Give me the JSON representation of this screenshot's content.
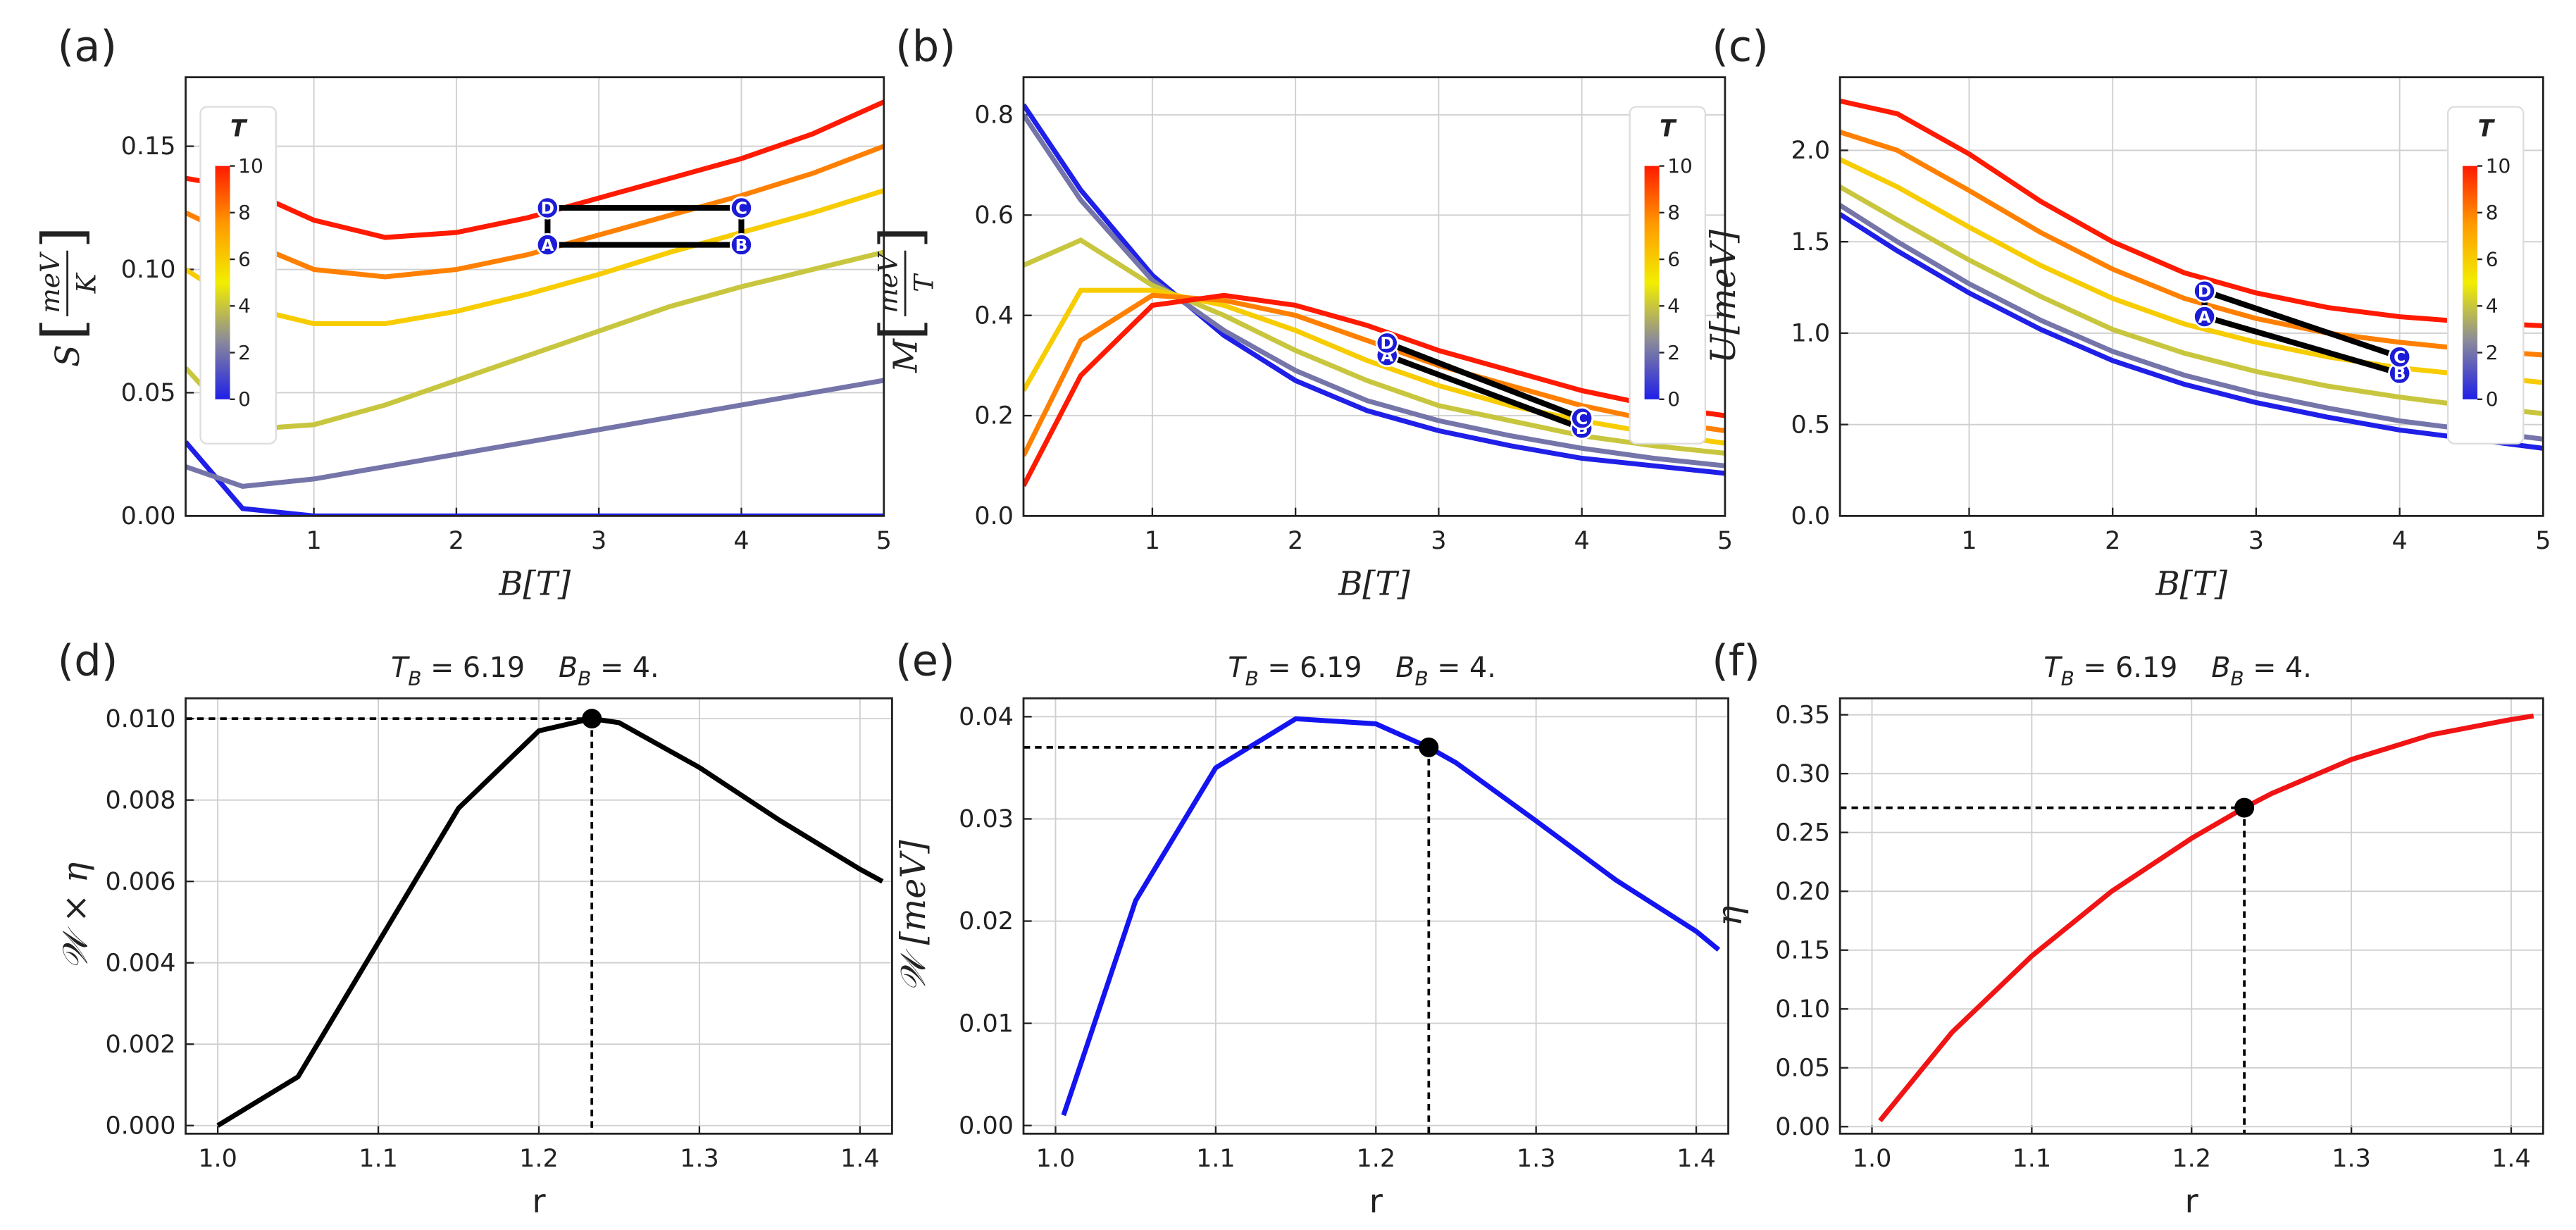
{
  "chart_data": [
    {
      "type": "line",
      "label": "(a)",
      "xlabel": "B[T]",
      "ylabel": {
        "symbol": "S",
        "open": "[",
        "num": "meV",
        "den": "K",
        "close": "]"
      },
      "x": [
        0.1,
        0.5,
        1,
        1.5,
        2,
        2.5,
        3,
        3.5,
        4,
        4.5,
        5
      ],
      "xlim": [
        0.1,
        5
      ],
      "ylim": [
        0,
        0.178
      ],
      "xticks": [
        1,
        2,
        3,
        4,
        5
      ],
      "yticks": [
        {
          "value": 0,
          "label": "0.00"
        },
        {
          "value": 0.05,
          "label": "0.05"
        },
        {
          "value": 0.1,
          "label": "0.10"
        },
        {
          "value": 0.15,
          "label": "0.15"
        }
      ],
      "grid": true,
      "colorbar": {
        "title": "T",
        "lim": [
          0,
          10
        ],
        "ticks": [
          0,
          2,
          4,
          6,
          8,
          10
        ],
        "colormap": [
          "#1f1fe8",
          "#8a8a9a",
          "#f2ee00",
          "#ff9a00",
          "#ff1a00"
        ],
        "loc": "upper left"
      },
      "series": [
        {
          "t": 0,
          "values": [
            0.03,
            0.003,
            0,
            0,
            0,
            0,
            0,
            0,
            0,
            0,
            0
          ]
        },
        {
          "t": 2,
          "values": [
            0.02,
            0.012,
            0.015,
            0.02,
            0.025,
            0.03,
            0.035,
            0.04,
            0.045,
            0.05,
            0.055
          ]
        },
        {
          "t": 4,
          "values": [
            0.06,
            0.035,
            0.037,
            0.045,
            0.055,
            0.065,
            0.075,
            0.085,
            0.093,
            0.1,
            0.107
          ]
        },
        {
          "t": 6,
          "values": [
            0.1,
            0.085,
            0.078,
            0.078,
            0.083,
            0.09,
            0.098,
            0.107,
            0.115,
            0.123,
            0.132
          ]
        },
        {
          "t": 8,
          "values": [
            0.123,
            0.112,
            0.1,
            0.097,
            0.1,
            0.106,
            0.114,
            0.122,
            0.13,
            0.139,
            0.15
          ]
        },
        {
          "t": 10,
          "values": [
            0.137,
            0.133,
            0.12,
            0.113,
            0.115,
            0.121,
            0.129,
            0.137,
            0.145,
            0.155,
            0.168
          ]
        }
      ],
      "cycle": {
        "labels": [
          "A",
          "B",
          "C",
          "D"
        ],
        "x": [
          2.64,
          4,
          4,
          2.64
        ],
        "y": [
          0.11,
          0.11,
          0.125,
          0.125
        ],
        "color": "#1c1cd6"
      }
    },
    {
      "type": "line",
      "label": "(b)",
      "xlabel": "B[T]",
      "ylabel": {
        "symbol": "M",
        "open": "[",
        "num": "meV",
        "den": "T",
        "close": "]"
      },
      "x": [
        0.1,
        0.5,
        1,
        1.5,
        2,
        2.5,
        3,
        3.5,
        4,
        4.5,
        5
      ],
      "xlim": [
        0.1,
        5
      ],
      "ylim": [
        0,
        0.875
      ],
      "xticks": [
        1,
        2,
        3,
        4,
        5
      ],
      "yticks": [
        {
          "value": 0,
          "label": "0.0"
        },
        0.2,
        0.4,
        0.6,
        0.8
      ],
      "grid": true,
      "colorbar": {
        "title": "T",
        "lim": [
          0,
          10
        ],
        "ticks": [
          0,
          2,
          4,
          6,
          8,
          10
        ],
        "colormap": [
          "#1f1fe8",
          "#8a8a9a",
          "#f2ee00",
          "#ff9a00",
          "#ff1a00"
        ],
        "loc": "upper right"
      },
      "series": [
        {
          "t": 0,
          "values": [
            0.82,
            0.65,
            0.48,
            0.36,
            0.27,
            0.21,
            0.17,
            0.14,
            0.115,
            0.1,
            0.085
          ]
        },
        {
          "t": 2,
          "values": [
            0.8,
            0.63,
            0.47,
            0.37,
            0.29,
            0.23,
            0.19,
            0.16,
            0.135,
            0.115,
            0.1
          ]
        },
        {
          "t": 4,
          "values": [
            0.5,
            0.55,
            0.46,
            0.4,
            0.33,
            0.27,
            0.22,
            0.19,
            0.16,
            0.14,
            0.125
          ]
        },
        {
          "t": 6,
          "values": [
            0.25,
            0.45,
            0.45,
            0.42,
            0.37,
            0.31,
            0.26,
            0.22,
            0.19,
            0.165,
            0.145
          ]
        },
        {
          "t": 8,
          "values": [
            0.12,
            0.35,
            0.44,
            0.43,
            0.4,
            0.35,
            0.3,
            0.26,
            0.22,
            0.19,
            0.17
          ]
        },
        {
          "t": 10,
          "values": [
            0.06,
            0.28,
            0.42,
            0.44,
            0.42,
            0.38,
            0.33,
            0.29,
            0.25,
            0.22,
            0.2
          ]
        }
      ],
      "cycle": {
        "labels": [
          "A",
          "B",
          "C",
          "D"
        ],
        "x": [
          2.64,
          4,
          4,
          2.64
        ],
        "y": [
          0.32,
          0.175,
          0.195,
          0.345
        ],
        "color": "#1c1cd6"
      }
    },
    {
      "type": "line",
      "label": "(c)",
      "xlabel": "B[T]",
      "ylabel": "U[meV]",
      "x": [
        0.1,
        0.5,
        1,
        1.5,
        2,
        2.5,
        3,
        3.5,
        4,
        4.5,
        5
      ],
      "xlim": [
        0.1,
        5
      ],
      "ylim": [
        0,
        2.4
      ],
      "xticks": [
        1,
        2,
        3,
        4,
        5
      ],
      "yticks": [
        {
          "value": 0,
          "label": "0.0"
        },
        0.5,
        {
          "value": 1,
          "label": "1.0"
        },
        1.5,
        {
          "value": 2,
          "label": "2.0"
        }
      ],
      "grid": true,
      "colorbar": {
        "title": "T",
        "lim": [
          0,
          10
        ],
        "ticks": [
          0,
          2,
          4,
          6,
          8,
          10
        ],
        "colormap": [
          "#1f1fe8",
          "#8a8a9a",
          "#f2ee00",
          "#ff9a00",
          "#ff1a00"
        ],
        "loc": "upper right"
      },
      "series": [
        {
          "t": 0,
          "values": [
            1.65,
            1.45,
            1.22,
            1.02,
            0.85,
            0.72,
            0.62,
            0.54,
            0.47,
            0.42,
            0.37
          ]
        },
        {
          "t": 2,
          "values": [
            1.7,
            1.5,
            1.27,
            1.07,
            0.9,
            0.77,
            0.67,
            0.59,
            0.52,
            0.47,
            0.42
          ]
        },
        {
          "t": 4,
          "values": [
            1.8,
            1.62,
            1.4,
            1.2,
            1.02,
            0.89,
            0.79,
            0.71,
            0.65,
            0.6,
            0.56
          ]
        },
        {
          "t": 6,
          "values": [
            1.95,
            1.8,
            1.58,
            1.37,
            1.19,
            1.05,
            0.95,
            0.87,
            0.81,
            0.77,
            0.73
          ]
        },
        {
          "t": 8,
          "values": [
            2.1,
            2.0,
            1.78,
            1.55,
            1.35,
            1.19,
            1.08,
            1.0,
            0.95,
            0.91,
            0.88
          ]
        },
        {
          "t": 10,
          "values": [
            2.27,
            2.2,
            1.98,
            1.72,
            1.5,
            1.33,
            1.22,
            1.14,
            1.09,
            1.06,
            1.04
          ]
        }
      ],
      "cycle": {
        "labels": [
          "A",
          "B",
          "C",
          "D"
        ],
        "x": [
          2.64,
          4,
          4,
          2.64
        ],
        "y": [
          1.09,
          0.78,
          0.87,
          1.23
        ],
        "color": "#1c1cd6"
      }
    },
    {
      "type": "line",
      "label": "(d)",
      "xlabel": "r",
      "ylabel": "𝒲 × η",
      "params": [
        {
          "var": "T",
          "sub": "B",
          "rest": " = 6.19"
        },
        {
          "var": "B",
          "sub": "B",
          "rest": " = 4."
        }
      ],
      "x": [
        1.0,
        1.05,
        1.1,
        1.15,
        1.2,
        1.233,
        1.25,
        1.3,
        1.35,
        1.4,
        1.414
      ],
      "values": [
        0,
        0.0012,
        0.0045,
        0.0078,
        0.0097,
        0.01,
        0.0099,
        0.0088,
        0.0075,
        0.0063,
        0.006
      ],
      "color": "#000000",
      "point": {
        "x": 1.233,
        "y": 0.01
      },
      "xlim": [
        0.98,
        1.42
      ],
      "ylim": [
        -0.0002,
        0.0105
      ],
      "xticks": [
        {
          "value": 1,
          "label": "1.0"
        },
        1.1,
        1.2,
        1.3,
        1.4
      ],
      "yticks": [
        {
          "value": 0,
          "label": "0.000"
        },
        0.002,
        0.004,
        0.006,
        0.008,
        {
          "value": 0.01,
          "label": "0.010"
        }
      ],
      "grid": true
    },
    {
      "type": "line",
      "label": "(e)",
      "xlabel": "r",
      "ylabel": "𝒲 [meV]",
      "params": [
        {
          "var": "T",
          "sub": "B",
          "rest": " = 6.19"
        },
        {
          "var": "B",
          "sub": "B",
          "rest": " = 4."
        }
      ],
      "x": [
        1.005,
        1.05,
        1.1,
        1.15,
        1.2,
        1.233,
        1.25,
        1.3,
        1.35,
        1.4,
        1.414
      ],
      "values": [
        0.001,
        0.022,
        0.035,
        0.0398,
        0.0393,
        0.037,
        0.0355,
        0.0298,
        0.024,
        0.019,
        0.0172
      ],
      "color": "#1414f0",
      "point": {
        "x": 1.233,
        "y": 0.037
      },
      "xlim": [
        0.98,
        1.42
      ],
      "ylim": [
        -0.0008,
        0.0418
      ],
      "xticks": [
        {
          "value": 1,
          "label": "1.0"
        },
        1.1,
        1.2,
        1.3,
        1.4
      ],
      "yticks": [
        {
          "value": 0,
          "label": "0.00"
        },
        0.01,
        0.02,
        0.03,
        0.04
      ],
      "grid": true
    },
    {
      "type": "line",
      "label": "(f)",
      "xlabel": "r",
      "ylabel": "η",
      "params": [
        {
          "var": "T",
          "sub": "B",
          "rest": " = 6.19"
        },
        {
          "var": "B",
          "sub": "B",
          "rest": " = 4."
        }
      ],
      "x": [
        1.005,
        1.05,
        1.1,
        1.15,
        1.2,
        1.233,
        1.25,
        1.3,
        1.35,
        1.4,
        1.414
      ],
      "values": [
        0.005,
        0.08,
        0.145,
        0.2,
        0.245,
        0.271,
        0.283,
        0.312,
        0.333,
        0.346,
        0.349
      ],
      "color": "#f01414",
      "point": {
        "x": 1.233,
        "y": 0.271
      },
      "xlim": [
        0.98,
        1.42
      ],
      "ylim": [
        -0.006,
        0.364
      ],
      "xticks": [
        {
          "value": 1,
          "label": "1.0"
        },
        1.1,
        1.2,
        1.3,
        1.4
      ],
      "yticks": [
        {
          "value": 0,
          "label": "0.00"
        },
        0.05,
        {
          "value": 0.1,
          "label": "0.10"
        },
        0.15,
        {
          "value": 0.2,
          "label": "0.20"
        },
        0.25,
        {
          "value": 0.3,
          "label": "0.30"
        },
        0.35
      ],
      "grid": true
    }
  ]
}
